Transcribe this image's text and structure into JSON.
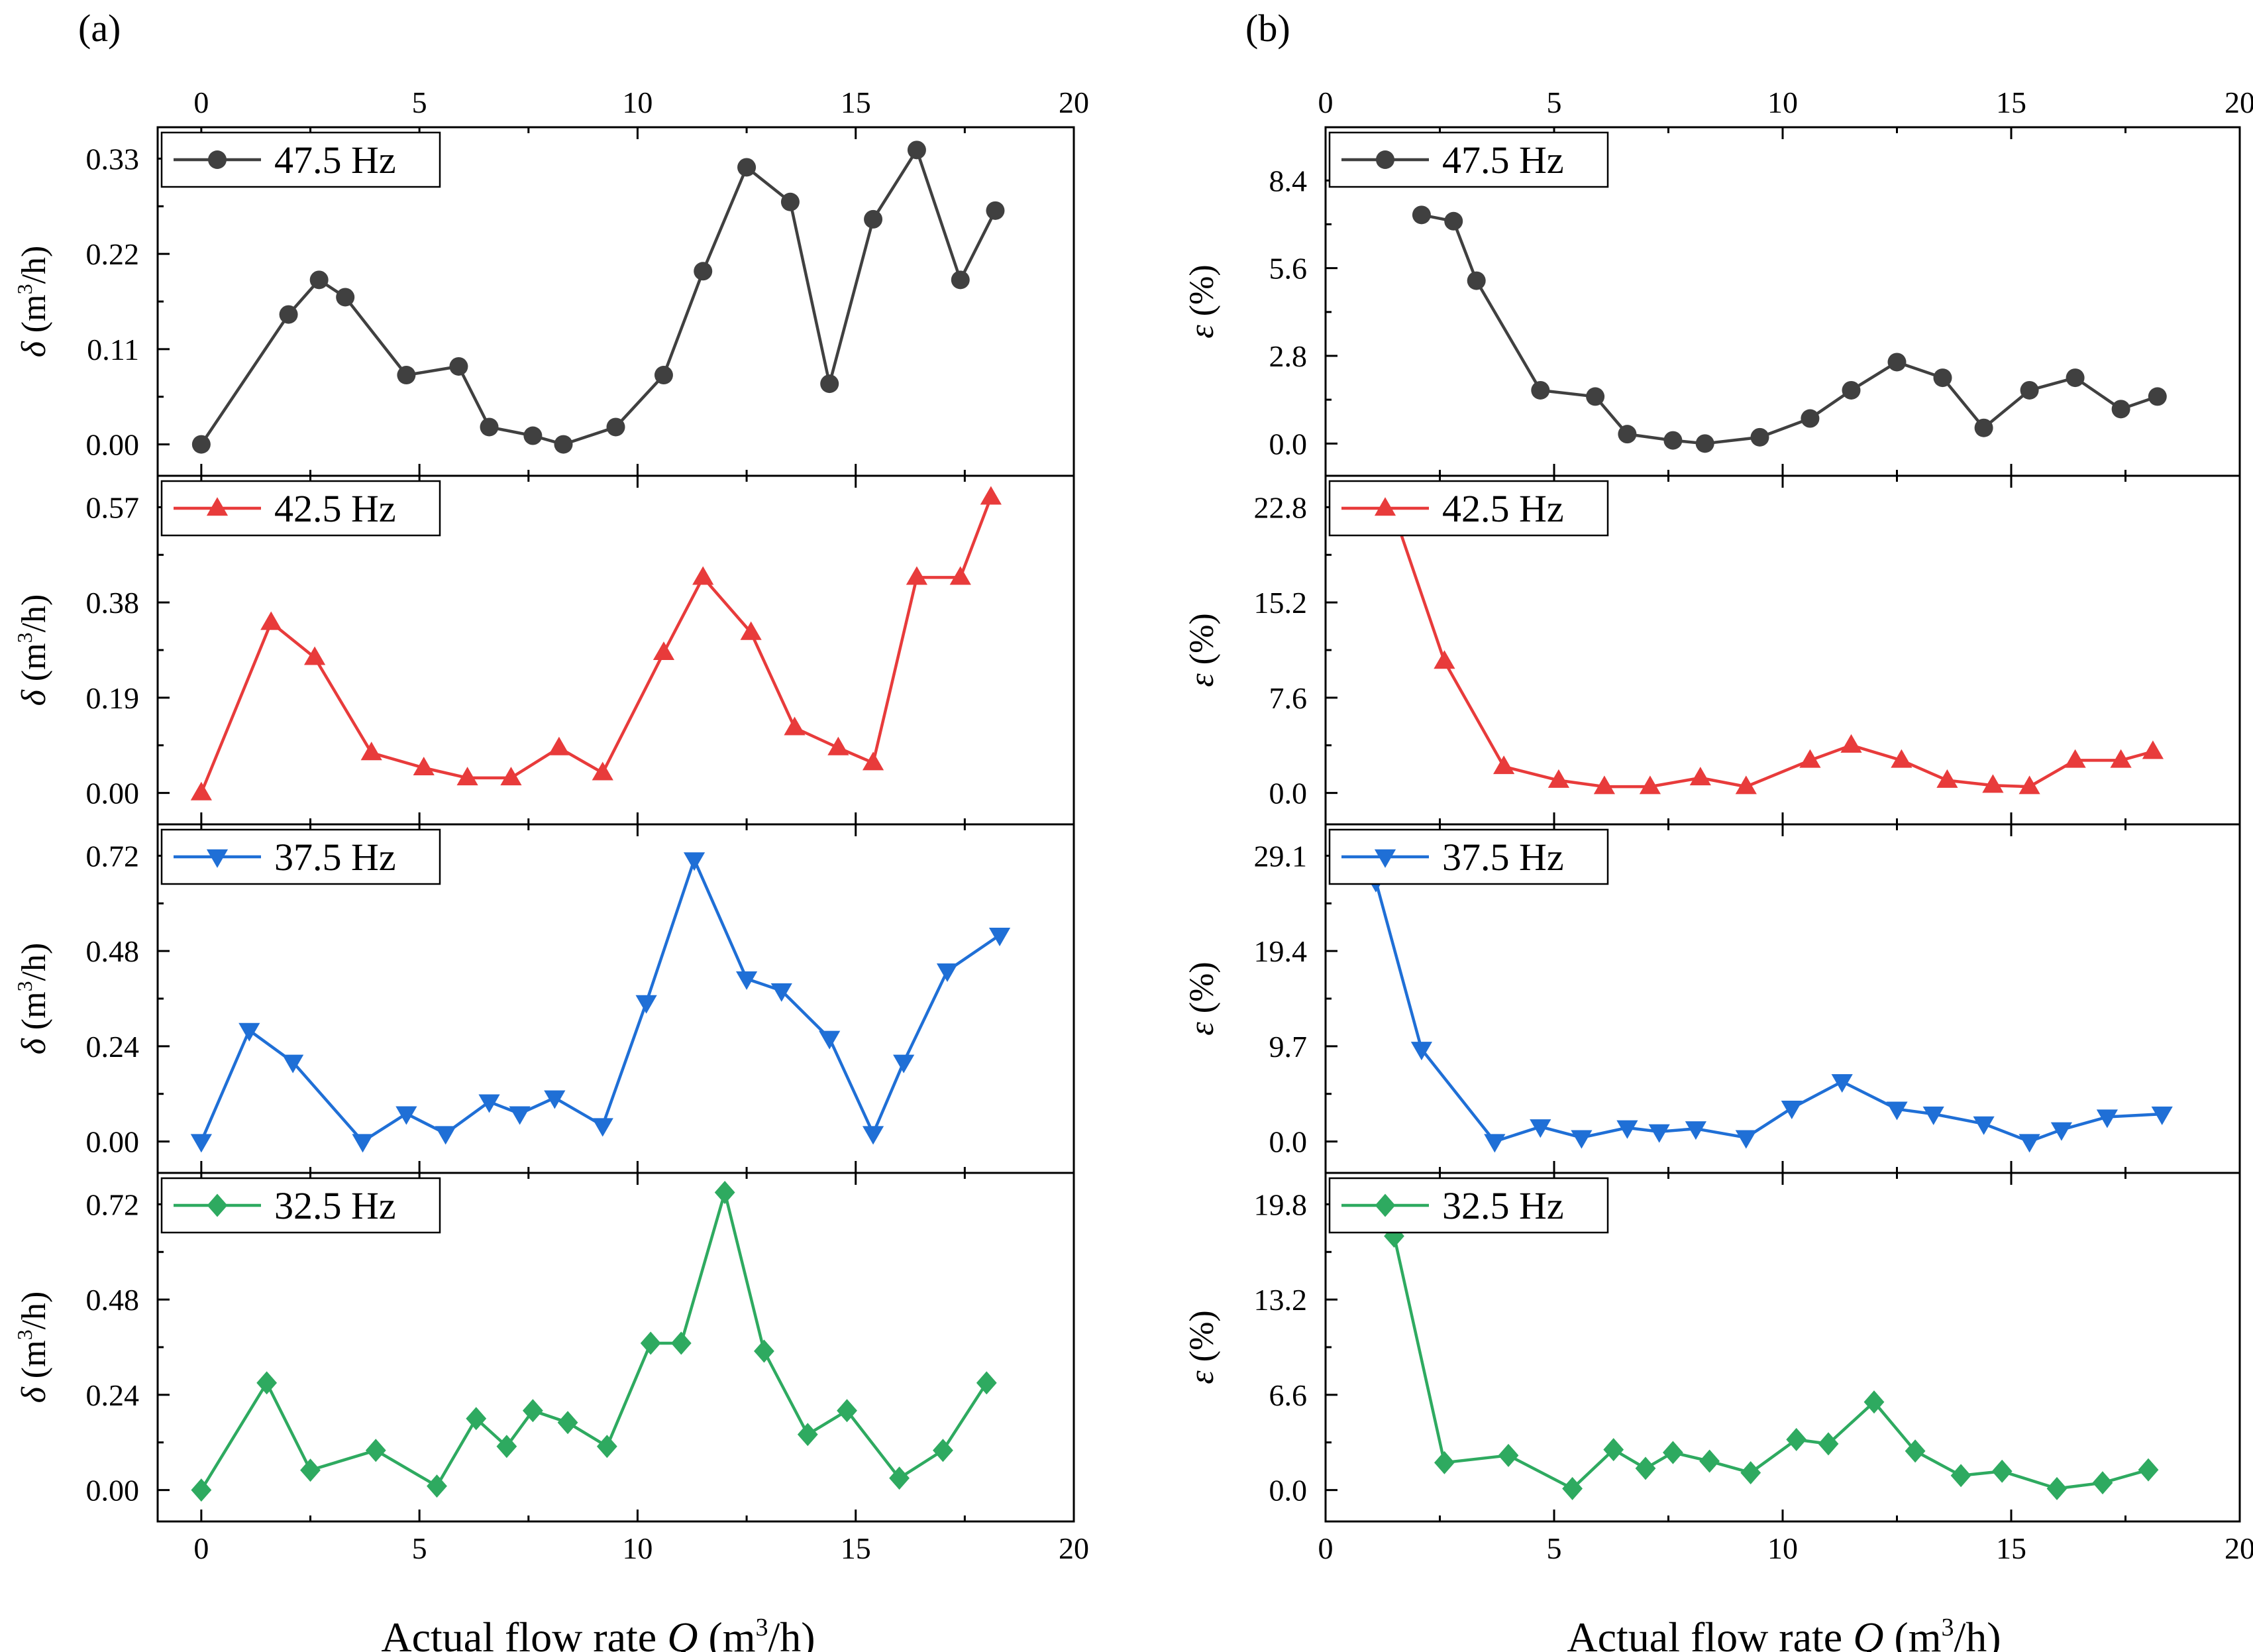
{
  "figure": {
    "panel_labels": [
      "(a)",
      "(b)"
    ],
    "xlabel_left": "Actual flow rate",
    "xlabel_italic": "Q",
    "xlabel_units_pre": "(m",
    "xlabel_units_sup": "3",
    "xlabel_units_post": "/h)"
  },
  "chart_data": [
    {
      "type": "line",
      "panel": "(a)",
      "ylabel": {
        "sym": "δ",
        "units_pre": "(m",
        "sup": "3",
        "units_post": "/h)"
      },
      "xlim": [
        -1,
        20
      ],
      "xticks": [
        0,
        5,
        10,
        15,
        20
      ],
      "subplots": [
        {
          "legend": "47.5 Hz",
          "color": "#404040",
          "marker": "circle",
          "ylim": [
            -0.0363,
            0.3663
          ],
          "yticks": [
            0.0,
            0.11,
            0.22,
            0.33
          ],
          "ytick_labels": [
            "0.00",
            "0.11",
            "0.22",
            "0.33"
          ],
          "x": [
            0.0,
            2.0,
            2.7,
            3.3,
            4.7,
            5.9,
            6.6,
            7.6,
            8.3,
            9.5,
            10.6,
            11.5,
            12.5,
            13.5,
            14.4,
            15.4,
            16.4,
            17.4,
            18.2
          ],
          "y": [
            0.0,
            0.15,
            0.19,
            0.17,
            0.08,
            0.09,
            0.02,
            0.01,
            0.0,
            0.02,
            0.08,
            0.2,
            0.32,
            0.28,
            0.07,
            0.26,
            0.34,
            0.19,
            0.27
          ]
        },
        {
          "legend": "42.5 Hz",
          "color": "#e83b3b",
          "marker": "triangle-up",
          "ylim": [
            -0.0627,
            0.6327
          ],
          "yticks": [
            0.0,
            0.19,
            0.38,
            0.57
          ],
          "ytick_labels": [
            "0.00",
            "0.19",
            "0.38",
            "0.57"
          ],
          "x": [
            0.0,
            1.6,
            2.6,
            3.9,
            5.1,
            6.1,
            7.1,
            8.2,
            9.2,
            10.6,
            11.5,
            12.6,
            13.6,
            14.6,
            15.4,
            16.4,
            17.4,
            18.1
          ],
          "y": [
            0.0,
            0.34,
            0.27,
            0.08,
            0.05,
            0.03,
            0.03,
            0.09,
            0.04,
            0.28,
            0.43,
            0.32,
            0.13,
            0.09,
            0.06,
            0.43,
            0.43,
            0.59
          ]
        },
        {
          "legend": "37.5 Hz",
          "color": "#1f6fd6",
          "marker": "triangle-down",
          "ylim": [
            -0.0792,
            0.7992
          ],
          "yticks": [
            0.0,
            0.24,
            0.48,
            0.72
          ],
          "ytick_labels": [
            "0.00",
            "0.24",
            "0.48",
            "0.72"
          ],
          "x": [
            0.0,
            1.1,
            2.1,
            3.7,
            4.7,
            5.6,
            6.6,
            7.3,
            8.1,
            9.2,
            10.2,
            11.3,
            12.5,
            13.3,
            14.4,
            15.4,
            16.1,
            17.1,
            18.3
          ],
          "y": [
            0.0,
            0.28,
            0.2,
            0.0,
            0.07,
            0.02,
            0.1,
            0.07,
            0.11,
            0.04,
            0.35,
            0.71,
            0.41,
            0.38,
            0.26,
            0.02,
            0.2,
            0.43,
            0.52
          ]
        },
        {
          "legend": "32.5 Hz",
          "color": "#2eaa60",
          "marker": "diamond",
          "ylim": [
            -0.0792,
            0.7992
          ],
          "yticks": [
            0.0,
            0.24,
            0.48,
            0.72
          ],
          "ytick_labels": [
            "0.00",
            "0.24",
            "0.48",
            "0.72"
          ],
          "x": [
            0.0,
            1.5,
            2.5,
            4.0,
            5.4,
            6.3,
            7.0,
            7.6,
            8.4,
            9.3,
            10.3,
            11.0,
            12.0,
            12.9,
            13.9,
            14.8,
            16.0,
            17.0,
            18.0
          ],
          "y": [
            0.0,
            0.27,
            0.05,
            0.1,
            0.01,
            0.18,
            0.11,
            0.2,
            0.17,
            0.11,
            0.37,
            0.37,
            0.75,
            0.35,
            0.14,
            0.2,
            0.03,
            0.1,
            0.27
          ]
        }
      ]
    },
    {
      "type": "line",
      "panel": "(b)",
      "ylabel": {
        "sym": "ε",
        "units_pre": "(%)",
        "sup": "",
        "units_post": ""
      },
      "xlim": [
        0,
        20
      ],
      "xticks": [
        0,
        5,
        10,
        15,
        20
      ],
      "subplots": [
        {
          "legend": "47.5 Hz",
          "color": "#404040",
          "marker": "circle",
          "ylim": [
            -1.03,
            10.1
          ],
          "yticks": [
            0.0,
            2.8,
            5.6,
            8.4
          ],
          "ytick_labels": [
            "0.0",
            "2.8",
            "5.6",
            "8.4"
          ],
          "x": [
            2.1,
            2.8,
            3.3,
            4.7,
            5.9,
            6.6,
            7.6,
            8.3,
            9.5,
            10.6,
            11.5,
            12.5,
            13.5,
            14.4,
            15.4,
            16.4,
            17.4,
            18.2
          ],
          "y": [
            7.3,
            7.1,
            5.2,
            1.7,
            1.5,
            0.3,
            0.1,
            0.0,
            0.2,
            0.8,
            1.7,
            2.6,
            2.1,
            0.5,
            1.7,
            2.1,
            1.1,
            1.5
          ]
        },
        {
          "legend": "42.5 Hz",
          "color": "#e83b3b",
          "marker": "triangle-up",
          "ylim": [
            -2.508,
            25.308
          ],
          "yticks": [
            0.0,
            7.6,
            15.2,
            22.8
          ],
          "ytick_labels": [
            "0.0",
            "7.6",
            "15.2",
            "22.8"
          ],
          "x": [
            1.6,
            2.6,
            3.9,
            5.1,
            6.1,
            7.1,
            8.2,
            9.2,
            10.6,
            11.5,
            12.6,
            13.6,
            14.6,
            15.4,
            16.4,
            17.4,
            18.1
          ],
          "y": [
            21.2,
            10.5,
            2.1,
            1.0,
            0.5,
            0.5,
            1.2,
            0.5,
            2.6,
            3.8,
            2.6,
            1.0,
            0.6,
            0.5,
            2.6,
            2.6,
            3.3
          ]
        },
        {
          "legend": "37.5 Hz",
          "color": "#1f6fd6",
          "marker": "triangle-down",
          "ylim": [
            -3.2,
            32.3
          ],
          "yticks": [
            0.0,
            9.7,
            19.4,
            29.1
          ],
          "ytick_labels": [
            "0.0",
            "9.7",
            "19.4",
            "29.1"
          ],
          "x": [
            1.1,
            2.1,
            3.7,
            4.7,
            5.6,
            6.6,
            7.3,
            8.1,
            9.2,
            10.2,
            11.3,
            12.5,
            13.3,
            14.4,
            15.4,
            16.1,
            17.1,
            18.3
          ],
          "y": [
            26.5,
            9.4,
            0.0,
            1.5,
            0.4,
            1.4,
            1.0,
            1.3,
            0.4,
            3.4,
            6.1,
            3.3,
            2.8,
            1.8,
            0.0,
            1.2,
            2.5,
            2.8
          ]
        },
        {
          "legend": "32.5 Hz",
          "color": "#2eaa60",
          "marker": "diamond",
          "ylim": [
            -2.178,
            21.978
          ],
          "yticks": [
            0.0,
            6.6,
            13.2,
            19.8
          ],
          "ytick_labels": [
            "0.0",
            "6.6",
            "13.2",
            "19.8"
          ],
          "x": [
            1.5,
            2.6,
            4.0,
            5.4,
            6.3,
            7.0,
            7.6,
            8.4,
            9.3,
            10.3,
            11.0,
            12.0,
            12.9,
            13.9,
            14.8,
            16.0,
            17.0,
            18.0
          ],
          "y": [
            17.6,
            1.9,
            2.4,
            0.1,
            2.8,
            1.5,
            2.6,
            2.0,
            1.2,
            3.5,
            3.2,
            6.1,
            2.7,
            1.0,
            1.3,
            0.1,
            0.5,
            1.4
          ]
        }
      ]
    }
  ]
}
